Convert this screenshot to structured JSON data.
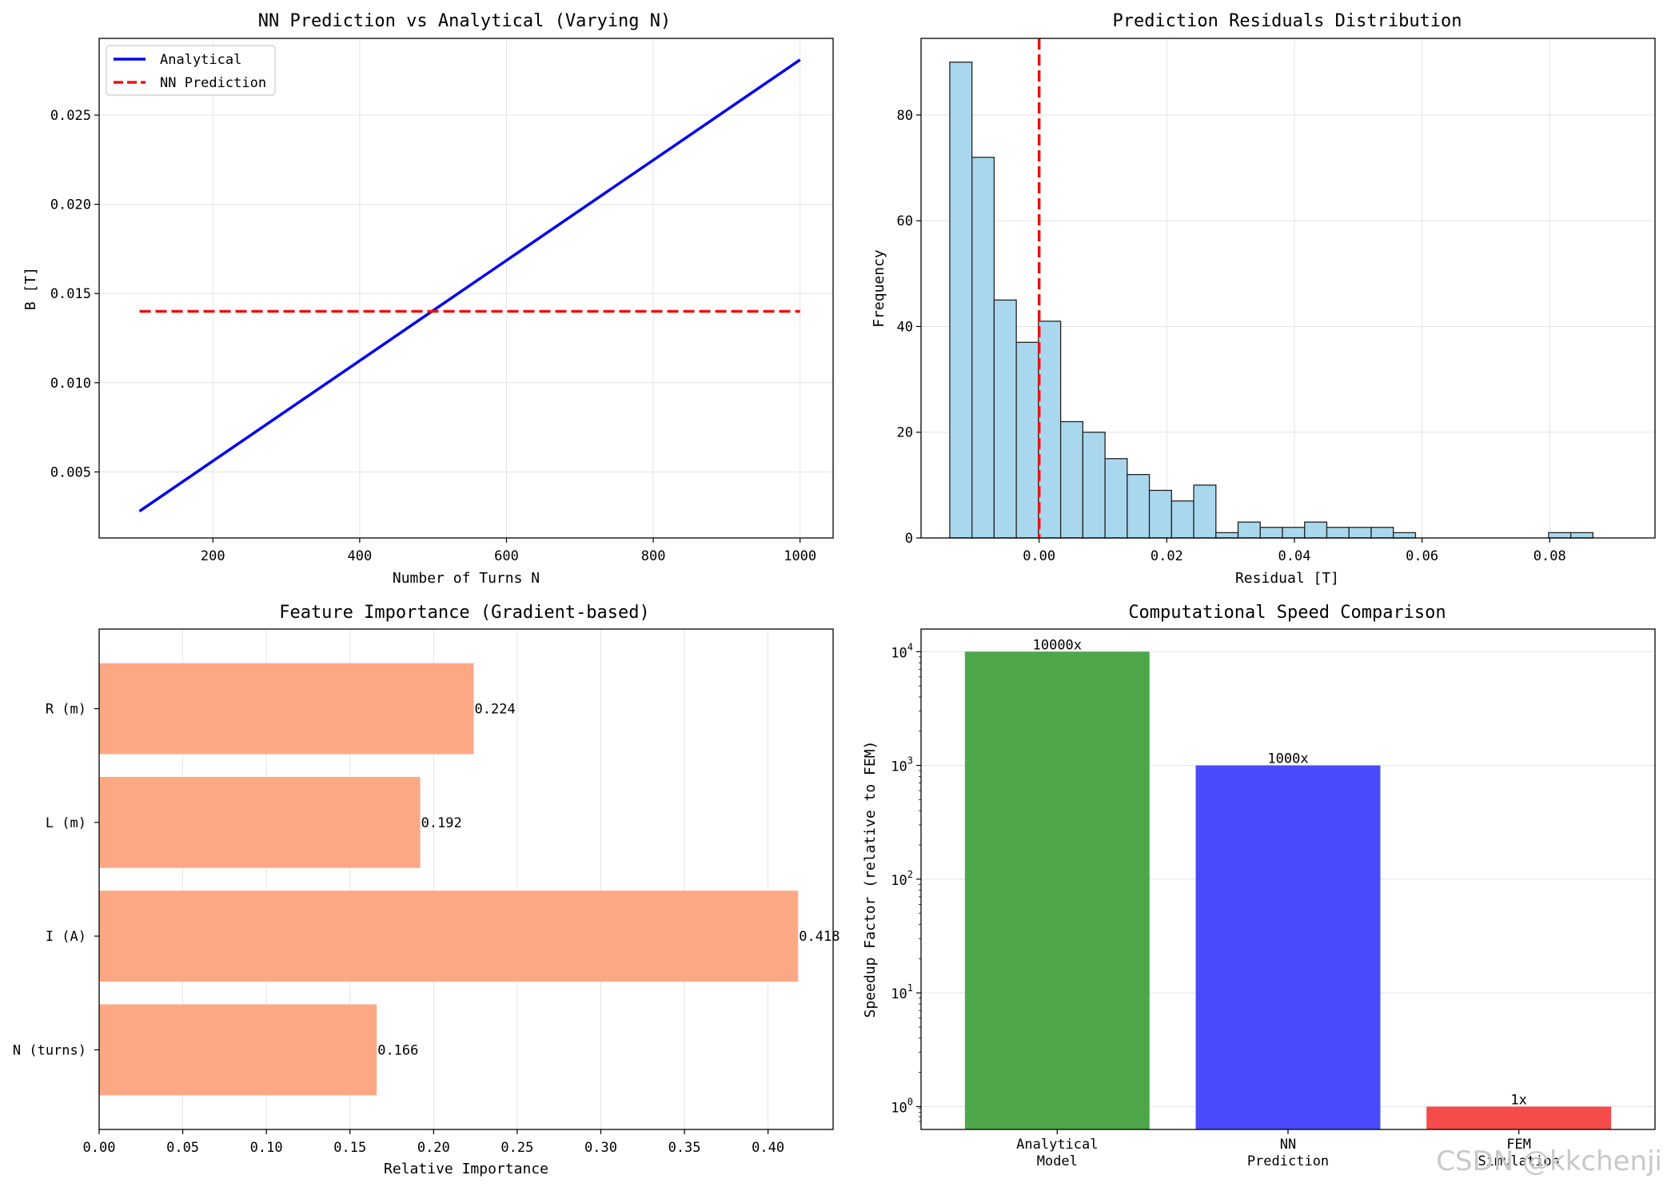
{
  "colors": {
    "analytical": "#0000ee",
    "nn": "#ee1111",
    "hist_fill": "#a9d8ee",
    "hist_edge": "#222222",
    "zero_line": "#ee1111",
    "feature_bar": "#fda885",
    "speed_bars": [
      "#4ea64b",
      "#4a4afc",
      "#f54b4b"
    ],
    "grid": "#e3e3e3"
  },
  "chart_data": [
    {
      "type": "line",
      "title": "NN Prediction vs Analytical (Varying N)",
      "xlabel": "Number of Turns N",
      "ylabel": "B [T]",
      "xlim": [
        45,
        1045
      ],
      "ylim": [
        0.0013,
        0.0293
      ],
      "xticks": [
        200,
        400,
        600,
        800,
        1000
      ],
      "xtick_labels": [
        "200",
        "400",
        "600",
        "800",
        "1000"
      ],
      "yticks": [
        0.005,
        0.01,
        0.015,
        0.02,
        0.025
      ],
      "ytick_labels": [
        "0.005",
        "0.010",
        "0.015",
        "0.020",
        "0.025"
      ],
      "legend_position": "upper-left",
      "grid": true,
      "series": [
        {
          "name": "Analytical",
          "style": "solid",
          "x": [
            100,
            1000
          ],
          "y": [
            0.0028,
            0.0281
          ]
        },
        {
          "name": "NN Prediction",
          "style": "dashed",
          "x": [
            100,
            1000
          ],
          "y": [
            0.014,
            0.014
          ]
        }
      ]
    },
    {
      "type": "histogram",
      "title": "Prediction Residuals Distribution",
      "xlabel": "Residual [T]",
      "ylabel": "Frequency",
      "xlim": [
        -0.0185,
        0.0965
      ],
      "ylim": [
        0,
        94.5
      ],
      "xticks": [
        0,
        0.02,
        0.04,
        0.06,
        0.08
      ],
      "xtick_labels": [
        "0.00",
        "0.02",
        "0.04",
        "0.06",
        "0.08"
      ],
      "yticks": [
        0,
        20,
        40,
        60,
        80
      ],
      "ytick_labels": [
        "0",
        "20",
        "40",
        "60",
        "80"
      ],
      "grid": true,
      "bin_start": -0.014,
      "bin_width": 0.003475,
      "counts": [
        90,
        72,
        45,
        37,
        41,
        22,
        20,
        15,
        12,
        9,
        7,
        10,
        1,
        3,
        2,
        2,
        3,
        2,
        2,
        2,
        1,
        0,
        0,
        0,
        0,
        0,
        0,
        1,
        1
      ],
      "vline_x": 0
    },
    {
      "type": "barh",
      "title": "Feature Importance (Gradient-based)",
      "xlabel": "Relative Importance",
      "ylabel": "",
      "xlim": [
        0,
        0.4389
      ],
      "xticks": [
        0,
        0.05,
        0.1,
        0.15,
        0.2,
        0.25,
        0.3,
        0.35,
        0.4
      ],
      "xtick_labels": [
        "0.00",
        "0.05",
        "0.10",
        "0.15",
        "0.20",
        "0.25",
        "0.30",
        "0.35",
        "0.40"
      ],
      "grid": true,
      "categories": [
        "N (turns)",
        "I (A)",
        "L (m)",
        "R (m)"
      ],
      "values": [
        0.166,
        0.418,
        0.192,
        0.224
      ],
      "value_labels": [
        "0.166",
        "0.418",
        "0.192",
        "0.224"
      ]
    },
    {
      "type": "bar",
      "title": "Computational Speed Comparison",
      "xlabel": "",
      "ylabel": "Speedup Factor (relative to FEM)",
      "yscale": "log",
      "ylim": [
        0.63,
        15800
      ],
      "yticks": [
        1,
        10,
        100,
        1000,
        10000
      ],
      "ytick_bases": [
        "10",
        "10",
        "10",
        "10",
        "10"
      ],
      "ytick_exponents": [
        "0",
        "1",
        "2",
        "3",
        "4"
      ],
      "grid": true,
      "categories": [
        [
          "Analytical",
          "Model"
        ],
        [
          "NN",
          "Prediction"
        ],
        [
          "FEM",
          "Simulation"
        ]
      ],
      "values": [
        10000,
        1000,
        1
      ],
      "value_labels": [
        "10000x",
        "1000x",
        "1x"
      ]
    }
  ],
  "watermark": "CSDN @kkchenji"
}
